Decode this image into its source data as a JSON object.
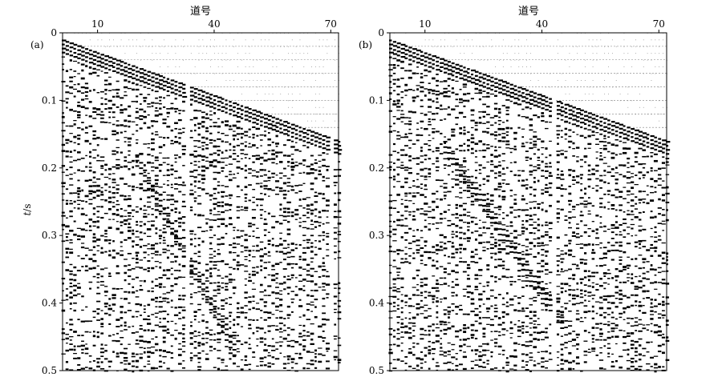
{
  "chart_data": [
    {
      "type": "heatmap",
      "panel_label": "(a)",
      "xlabel": "道号",
      "ylabel": "t/s",
      "x_ticks": [
        10,
        40,
        70
      ],
      "y_ticks": [
        0,
        0.1,
        0.2,
        0.3,
        0.4,
        0.5
      ],
      "xlim": [
        1,
        72
      ],
      "ylim": [
        0,
        0.5
      ],
      "y_reversed": true,
      "first_break": {
        "x": [
          1,
          72
        ],
        "t": [
          0.01,
          0.16
        ]
      },
      "dead_traces": [
        33,
        70
      ],
      "dipping_event": {
        "x": [
          20,
          45
        ],
        "t": [
          0.18,
          0.46
        ]
      }
    },
    {
      "type": "heatmap",
      "panel_label": "(b)",
      "xlabel": "道号",
      "ylabel": "",
      "x_ticks": [
        10,
        40,
        70
      ],
      "y_ticks": [
        0,
        0.1,
        0.2,
        0.3,
        0.4,
        0.5
      ],
      "xlim": [
        1,
        72
      ],
      "ylim": [
        0,
        0.5
      ],
      "y_reversed": true,
      "first_break": {
        "x": [
          1,
          72
        ],
        "t": [
          0.01,
          0.16
        ]
      },
      "dead_traces": [
        43
      ],
      "dipping_event": {
        "x": [
          15,
          45
        ],
        "t": [
          0.16,
          0.42
        ]
      }
    }
  ],
  "labels": {
    "xlabel": "道号",
    "ylabel_italic": "t",
    "ylabel_unit": "/s",
    "panel_a": "(a)",
    "panel_b": "(b)"
  },
  "colors": {
    "ink": "#000000",
    "background": "#ffffff",
    "grid": "#808080"
  }
}
